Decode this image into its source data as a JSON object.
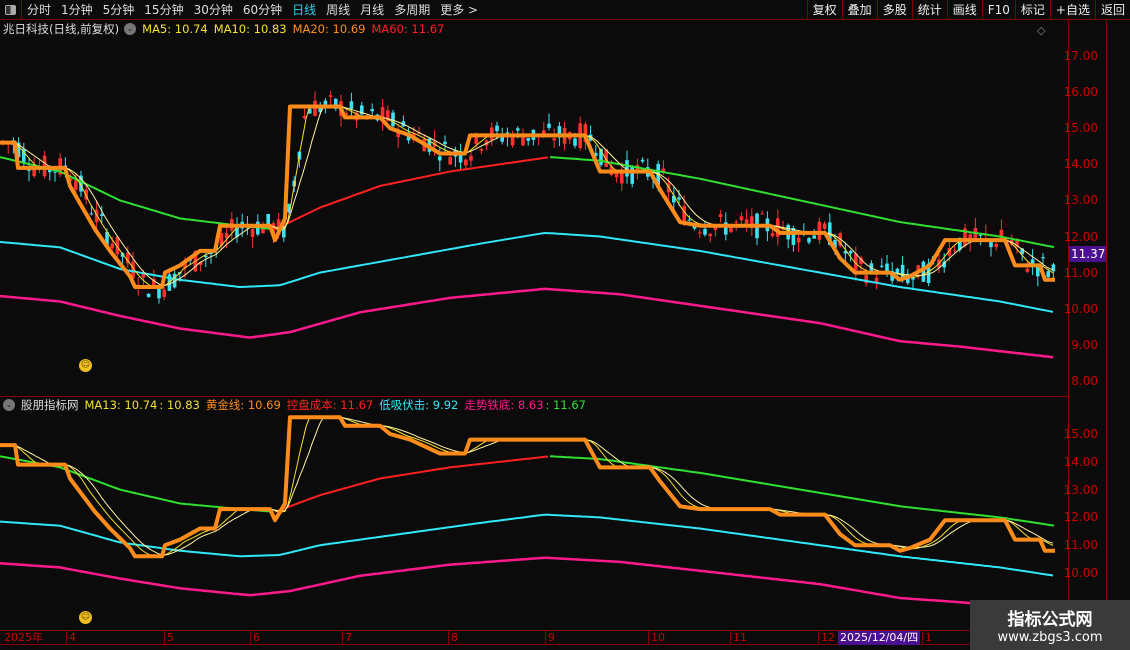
{
  "toolbar": {
    "periods": [
      "分时",
      "1分钟",
      "5分钟",
      "15分钟",
      "30分钟",
      "60分钟",
      "日线",
      "周线",
      "月线",
      "多周期",
      "更多 >"
    ],
    "active": "日线",
    "right_buttons": [
      "复权",
      "叠加",
      "多股",
      "统计",
      "画线",
      "F10",
      "标记",
      "+自选",
      "返回"
    ]
  },
  "main_legend": {
    "title": "兆日科技(日线,前复权)",
    "ma5": "MA5: 10.74",
    "ma10": "MA10: 10.83",
    "ma20": "MA20: 10.69",
    "ma60": "MA60: 11.67"
  },
  "sub_legend": {
    "title": "股朋指标网",
    "ma13": "MA13: 10.74",
    "v2": ": 10.83",
    "gold": "黄金线: 10.69",
    "cost": "控盘成本: 11.67",
    "low": "低吸伏击: 9.92",
    "bottom": "走势铁底: 8.63",
    "v7": ": 11.67"
  },
  "colors": {
    "up": "#ff3030",
    "down": "#40e0f0",
    "orange": "#ff8c1a",
    "yellow": "#f5e030",
    "green": "#30e030",
    "red": "#ff2020",
    "cyan": "#30e8f8",
    "magenta": "#ff1a8c"
  },
  "main_axis": {
    "ticks": [
      "17.00",
      "16.00",
      "15.00",
      "14.00",
      "13.00",
      "12.00",
      "11.00",
      "10.00",
      "9.00",
      "8.00"
    ],
    "last_price": "11.37"
  },
  "sub_axis": {
    "ticks": [
      "15.00",
      "14.00",
      "13.00",
      "12.00",
      "11.00",
      "10.00"
    ]
  },
  "time_axis": {
    "labels": [
      "2025年",
      "4",
      "5",
      "6",
      "7",
      "8",
      "9",
      "10",
      "11",
      "12",
      "1"
    ],
    "cursor_date": "2025/12/04/四"
  },
  "watermark": {
    "title": "指标公式网",
    "url": "www.zbgs3.com"
  },
  "series": {
    "control_cost": [
      [
        0,
        14.2
      ],
      [
        60,
        13.8
      ],
      [
        120,
        13.0
      ],
      [
        180,
        12.5
      ],
      [
        240,
        12.3
      ],
      [
        275,
        12.2
      ],
      [
        320,
        12.8
      ],
      [
        380,
        13.4
      ],
      [
        450,
        13.8
      ],
      [
        500,
        14.0
      ],
      [
        550,
        14.2
      ],
      [
        600,
        14.1
      ],
      [
        700,
        13.6
      ],
      [
        800,
        13.0
      ],
      [
        900,
        12.4
      ],
      [
        1000,
        12.0
      ],
      [
        1055,
        11.7
      ]
    ],
    "low_buy": [
      [
        0,
        11.85
      ],
      [
        60,
        11.7
      ],
      [
        120,
        11.1
      ],
      [
        180,
        10.8
      ],
      [
        240,
        10.6
      ],
      [
        280,
        10.65
      ],
      [
        320,
        11.0
      ],
      [
        400,
        11.4
      ],
      [
        480,
        11.8
      ],
      [
        545,
        12.1
      ],
      [
        600,
        12.0
      ],
      [
        700,
        11.6
      ],
      [
        800,
        11.1
      ],
      [
        900,
        10.6
      ],
      [
        1000,
        10.2
      ],
      [
        1055,
        9.9
      ]
    ],
    "iron_bottom": [
      [
        0,
        10.35
      ],
      [
        60,
        10.2
      ],
      [
        120,
        9.8
      ],
      [
        180,
        9.45
      ],
      [
        250,
        9.2
      ],
      [
        290,
        9.35
      ],
      [
        360,
        9.9
      ],
      [
        450,
        10.3
      ],
      [
        545,
        10.55
      ],
      [
        620,
        10.4
      ],
      [
        720,
        10.0
      ],
      [
        820,
        9.6
      ],
      [
        900,
        9.1
      ],
      [
        960,
        8.95
      ],
      [
        1055,
        8.65
      ]
    ],
    "gold_line": [
      [
        0,
        14.6
      ],
      [
        15,
        14.6
      ],
      [
        18,
        13.9
      ],
      [
        65,
        13.9
      ],
      [
        70,
        13.4
      ],
      [
        95,
        12.2
      ],
      [
        110,
        11.6
      ],
      [
        130,
        10.9
      ],
      [
        135,
        10.6
      ],
      [
        162,
        10.6
      ],
      [
        165,
        11.0
      ],
      [
        180,
        11.2
      ],
      [
        200,
        11.6
      ],
      [
        215,
        11.6
      ],
      [
        220,
        12.3
      ],
      [
        270,
        12.3
      ],
      [
        275,
        11.9
      ],
      [
        285,
        12.5
      ],
      [
        290,
        15.6
      ],
      [
        340,
        15.6
      ],
      [
        345,
        15.3
      ],
      [
        380,
        15.3
      ],
      [
        390,
        15.0
      ],
      [
        410,
        14.8
      ],
      [
        440,
        14.3
      ],
      [
        465,
        14.3
      ],
      [
        470,
        14.8
      ],
      [
        585,
        14.8
      ],
      [
        600,
        13.8
      ],
      [
        650,
        13.8
      ],
      [
        660,
        13.3
      ],
      [
        680,
        12.4
      ],
      [
        700,
        12.3
      ],
      [
        770,
        12.3
      ],
      [
        780,
        12.1
      ],
      [
        825,
        12.1
      ],
      [
        840,
        11.4
      ],
      [
        855,
        11.0
      ],
      [
        890,
        11.0
      ],
      [
        900,
        10.8
      ],
      [
        910,
        10.9
      ],
      [
        930,
        11.2
      ],
      [
        945,
        11.9
      ],
      [
        1005,
        11.9
      ],
      [
        1015,
        11.2
      ],
      [
        1040,
        11.2
      ],
      [
        1045,
        10.8
      ],
      [
        1055,
        10.8
      ]
    ]
  }
}
